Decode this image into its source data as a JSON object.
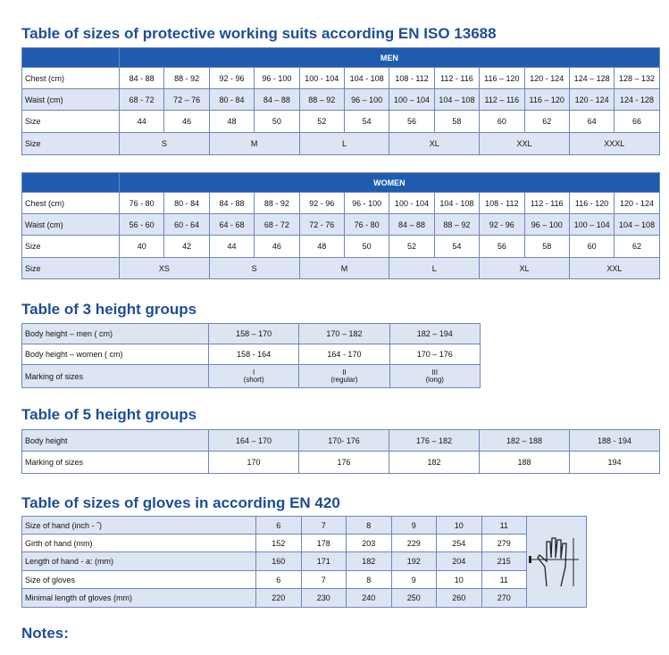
{
  "suits": {
    "title": "Table of sizes of protective working suits according EN ISO 13688"
  },
  "men": {
    "header": "MEN",
    "rows": [
      {
        "label": "Chest (cm)",
        "cells": [
          "84 - 88",
          "88 - 92",
          "92 - 96",
          "96 - 100",
          "100 - 104",
          "104 - 108",
          "108 - 112",
          "112 - 116",
          "116 – 120",
          "120 - 124",
          "124 – 128",
          "128 – 132"
        ]
      },
      {
        "label": "Waist (cm)",
        "cells": [
          "68 - 72",
          "72 – 76",
          "80 - 84",
          "84 – 88",
          "88 – 92",
          "96 – 100",
          "100 – 104",
          "104 – 108",
          "112 – 116",
          "116 – 120",
          "120 - 124",
          "124 - 128"
        ]
      },
      {
        "label": "Size",
        "cells": [
          44,
          46,
          48,
          50,
          52,
          54,
          56,
          58,
          60,
          62,
          64,
          66
        ]
      },
      {
        "label": "Size",
        "cells": [
          "S",
          "M",
          "L",
          "XL",
          "XXL",
          "XXXL"
        ]
      }
    ]
  },
  "women": {
    "header": "WOMEN",
    "rows": [
      {
        "label": "Chest (cm)",
        "cells": [
          "76 - 80",
          "80 - 84",
          "84 - 88",
          "88 - 92",
          "92 - 96",
          "96 - 100",
          "100 - 104",
          "104 - 108",
          "108 - 112",
          "112 - 116",
          "116 - 120",
          "120 - 124"
        ]
      },
      {
        "label": "Waist (cm)",
        "cells": [
          "56 - 60",
          "60 - 64",
          "64 - 68",
          "68 - 72",
          "72 - 76",
          "76 - 80",
          "84 – 88",
          "88 – 92",
          "92 - 96",
          "96 – 100",
          "100 – 104",
          "104 – 108"
        ]
      },
      {
        "label": "Size",
        "cells": [
          40,
          42,
          44,
          46,
          48,
          50,
          52,
          54,
          56,
          58,
          60,
          62
        ]
      },
      {
        "label": "Size",
        "cells": [
          "XS",
          "S",
          "M",
          "L",
          "XL",
          "XXL"
        ]
      }
    ]
  },
  "height3": {
    "title": "Table of 3 height groups",
    "rows": [
      {
        "label": "Body height – men ( cm)",
        "cells": [
          "158 – 170",
          "170 – 182",
          "182 – 194"
        ]
      },
      {
        "label": "Body height – women ( cm)",
        "cells": [
          "158 - 164",
          "164 - 170",
          "170 – 176"
        ]
      },
      {
        "label": "Marking of sizes",
        "cells": [
          {
            "mark": "I",
            "note": "(short)"
          },
          {
            "mark": "II",
            "note": "(regular)"
          },
          {
            "mark": "III",
            "note": "(long)"
          }
        ]
      }
    ]
  },
  "height5": {
    "title": "Table of 5 height groups",
    "rows": [
      {
        "label": "Body height",
        "cells": [
          "164 – 170",
          "170- 176",
          "176 – 182",
          "182 – 188",
          "188 - 194"
        ]
      },
      {
        "label": "Marking of sizes",
        "cells": [
          170,
          176,
          182,
          188,
          194
        ]
      }
    ]
  },
  "gloves": {
    "title": "Table of sizes of gloves in according EN 420",
    "rows": [
      {
        "label": "Size of hand (inch - ˝)",
        "cells": [
          6,
          7,
          8,
          9,
          10,
          11
        ]
      },
      {
        "label": "Girth of hand (mm)",
        "cells": [
          152,
          178,
          203,
          229,
          254,
          279
        ]
      },
      {
        "label": "Length of hand - a: (mm)",
        "cells": [
          160,
          171,
          182,
          192,
          204,
          215
        ]
      },
      {
        "label": "Size of gloves",
        "cells": [
          6,
          7,
          8,
          9,
          10,
          11
        ]
      },
      {
        "label": "Minimal length of gloves (mm)",
        "cells": [
          220,
          230,
          240,
          250,
          260,
          270
        ]
      }
    ]
  },
  "notes": {
    "title": "Notes:"
  }
}
